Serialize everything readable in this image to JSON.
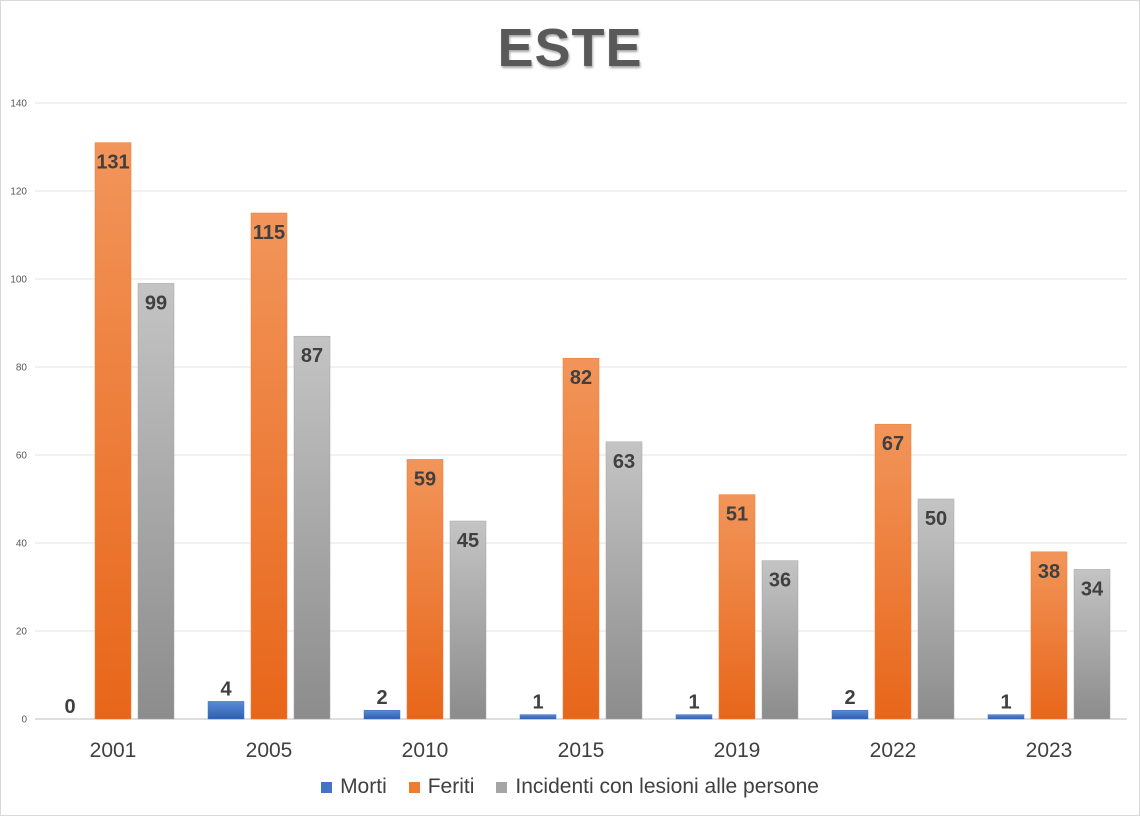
{
  "chart_data": {
    "type": "bar",
    "title": "ESTE",
    "categories": [
      "2001",
      "2005",
      "2010",
      "2015",
      "2019",
      "2022",
      "2023"
    ],
    "series": [
      {
        "name": "Morti",
        "values": [
          0,
          4,
          2,
          1,
          1,
          2,
          1
        ],
        "color": "#4472c4"
      },
      {
        "name": "Feriti",
        "values": [
          131,
          115,
          59,
          82,
          51,
          67,
          38
        ],
        "color": "#ed7d31"
      },
      {
        "name": "Incidenti con lesioni alle persone",
        "values": [
          99,
          87,
          45,
          63,
          36,
          50,
          34
        ],
        "color": "#a5a5a5"
      }
    ],
    "ylim": [
      0,
      140
    ],
    "yticks": [
      0,
      20,
      40,
      60,
      80,
      100,
      120,
      140
    ],
    "xlabel": "",
    "ylabel": "",
    "grid": true,
    "legend_position": "bottom",
    "data_labels": true
  }
}
